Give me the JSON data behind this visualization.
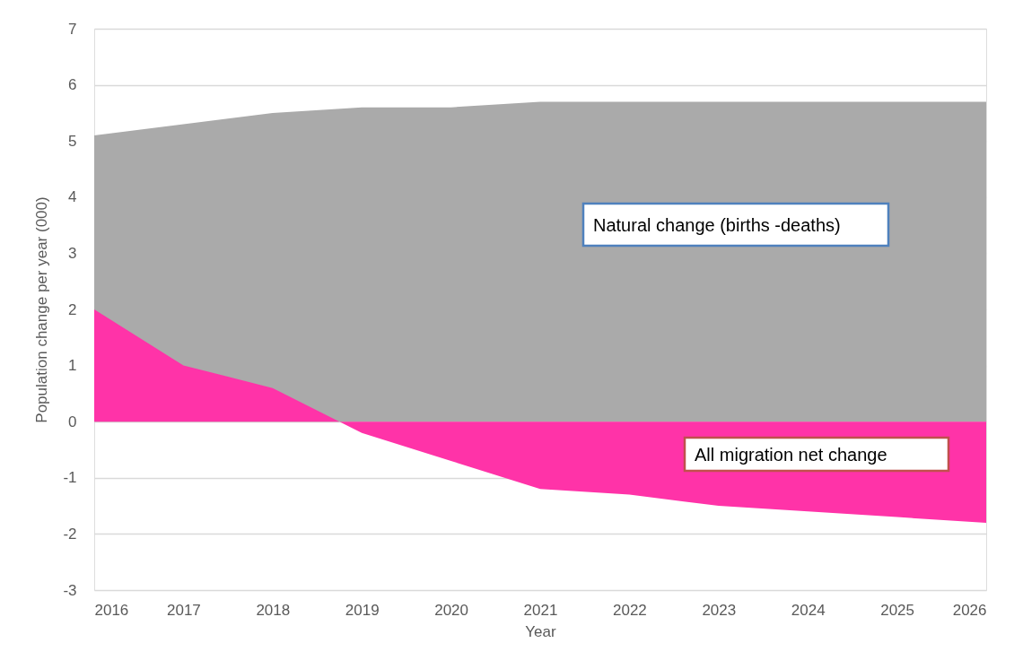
{
  "chart_data": {
    "type": "area",
    "xlabel": "Year",
    "ylabel": "Population change  per year (000)",
    "x": [
      2016,
      2017,
      2018,
      2019,
      2020,
      2021,
      2022,
      2023,
      2024,
      2025,
      2026
    ],
    "series": [
      {
        "name": "Natural change (births -deaths)",
        "color": "#aaaaaa",
        "values": [
          5.1,
          5.3,
          5.5,
          5.6,
          5.6,
          5.7,
          5.7,
          5.7,
          5.7,
          5.7,
          5.7
        ]
      },
      {
        "name": "All migration net change",
        "color": "#ff33a8",
        "values": [
          2.0,
          1.0,
          0.6,
          -0.2,
          -0.7,
          -1.2,
          -1.3,
          -1.5,
          -1.6,
          -1.7,
          -1.8
        ]
      }
    ],
    "xlim": [
      2016,
      2026
    ],
    "xticks": [
      2016,
      2017,
      2018,
      2019,
      2020,
      2021,
      2022,
      2023,
      2024,
      2025,
      2026
    ],
    "ylim": [
      -3,
      7
    ],
    "yticks": [
      -3,
      -2,
      -1,
      0,
      1,
      2,
      3,
      4,
      5,
      6,
      7
    ],
    "grid": "y"
  }
}
